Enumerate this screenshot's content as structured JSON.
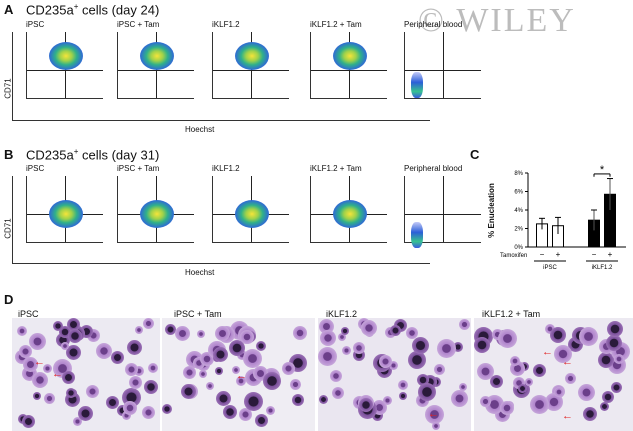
{
  "watermark": "WILEY",
  "panel_a": {
    "letter": "A",
    "title_main": "CD235a",
    "title_sup": "+",
    "title_rest": " cells (day 24)",
    "ylabel": "CD71",
    "xlabel": "Hoechst",
    "plots": [
      "iPSC",
      "iPSC + Tam",
      "iKLF1.2",
      "iKLF1.2 + Tam",
      "Peripheral blood"
    ]
  },
  "panel_b": {
    "letter": "B",
    "title_main": "CD235a",
    "title_sup": "+",
    "title_rest": " cells (day 31)",
    "ylabel": "CD71",
    "xlabel": "Hoechst",
    "plots": [
      "iPSC",
      "iPSC + Tam",
      "iKLF1.2",
      "iKLF1.2 + Tam",
      "Peripheral blood"
    ]
  },
  "panel_c": {
    "letter": "C",
    "chart_data": {
      "type": "bar",
      "ylabel": "% Enucleation",
      "ylim": [
        0,
        8
      ],
      "yticks": [
        "0%",
        "2%",
        "4%",
        "6%",
        "8%"
      ],
      "tamoxifen_label": "Tamoxifen",
      "groups": [
        {
          "name": "iPSC",
          "bars": [
            {
              "tam": "−",
              "value": 2.5,
              "err": 0.6,
              "fill": "#ffffff"
            },
            {
              "tam": "+",
              "value": 2.3,
              "err": 0.9,
              "fill": "#ffffff"
            }
          ]
        },
        {
          "name": "iKLF1.2",
          "bars": [
            {
              "tam": "−",
              "value": 2.9,
              "err": 1.1,
              "fill": "#000000"
            },
            {
              "tam": "+",
              "value": 5.7,
              "err": 1.7,
              "fill": "#000000"
            }
          ]
        }
      ],
      "significance": "*"
    }
  },
  "panel_d": {
    "letter": "D",
    "images": [
      "iPSC",
      "iPSC + Tam",
      "iKLF1.2",
      "iKLF1.2 + Tam"
    ]
  }
}
